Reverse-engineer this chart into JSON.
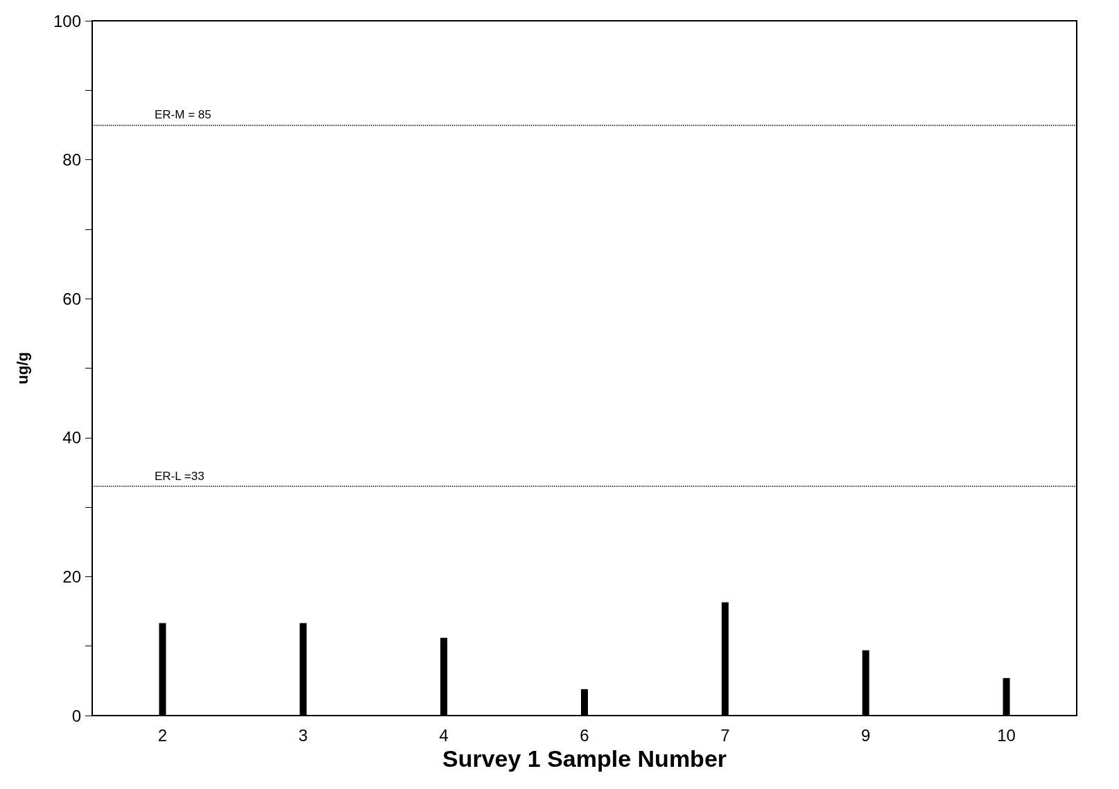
{
  "chart_data": {
    "type": "bar",
    "xlabel": "Survey 1 Sample Number",
    "ylabel": "ug/g",
    "categories": [
      "2",
      "3",
      "4",
      "6",
      "7",
      "9",
      "10"
    ],
    "values": [
      13.3,
      13.3,
      11.2,
      3.8,
      16.3,
      9.4,
      5.4
    ],
    "color": "#000000",
    "ylim": [
      0,
      100
    ],
    "yticks": [
      0,
      {
        "value": 10,
        "label": null
      },
      20,
      {
        "value": 30,
        "label": null
      },
      40,
      {
        "value": 50,
        "label": null
      },
      60,
      {
        "value": 70,
        "label": null
      },
      80,
      {
        "value": 90,
        "label": null
      },
      100
    ],
    "ref_lines": [
      {
        "axis": "y",
        "value": 85,
        "label": "ER-M = 85",
        "line_style": "dotted"
      },
      {
        "axis": "y",
        "value": 33,
        "label": "ER-L =33",
        "line_style": "dotted"
      }
    ],
    "grid": false
  }
}
